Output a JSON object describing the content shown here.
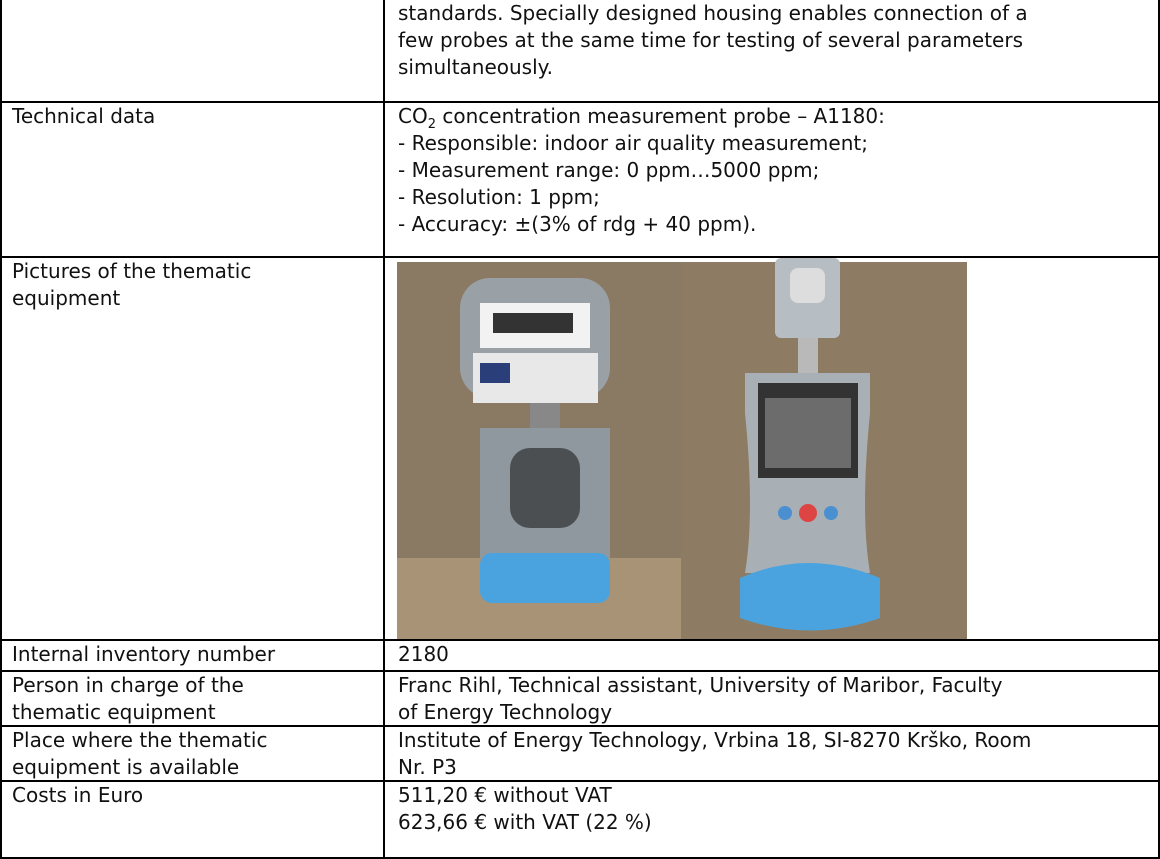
{
  "rows": [
    {
      "value": [
        "standards. Specially designed housing enables connection of a",
        "few probes at the same time for testing of several parameters",
        "simultaneously."
      ]
    },
    {
      "label": [
        "Technical data"
      ],
      "value_first": {
        "pre": "CO",
        "sub": "2",
        "post": " concentration measurement probe – A1180:"
      },
      "value": [
        "- Responsible: indoor air quality measurement;",
        "- Measurement range: 0 ppm…5000 ppm;",
        "- Resolution: 1 ppm;",
        "- Accuracy: ±(3% of rdg + 40 ppm)."
      ]
    },
    {
      "label": [
        "Pictures of the thematic",
        "equipment"
      ]
    },
    {
      "label": [
        "Internal inventory number"
      ],
      "value": [
        "2180"
      ]
    },
    {
      "label": [
        "Person in charge of the",
        "thematic equipment"
      ],
      "value": [
        "Franc Rihl, Technical assistant, University of Maribor, Faculty",
        "of Energy Technology"
      ]
    },
    {
      "label": [
        "Place where the thematic",
        "equipment is available"
      ],
      "value": [
        "Institute of Energy Technology, Vrbina 18, SI-8270 Krško, Room",
        "Nr. P3"
      ]
    },
    {
      "label": [
        "Costs in Euro"
      ],
      "value": [
        "511,20 € without VAT",
        "623,66 € with VAT (22 %)"
      ]
    }
  ]
}
